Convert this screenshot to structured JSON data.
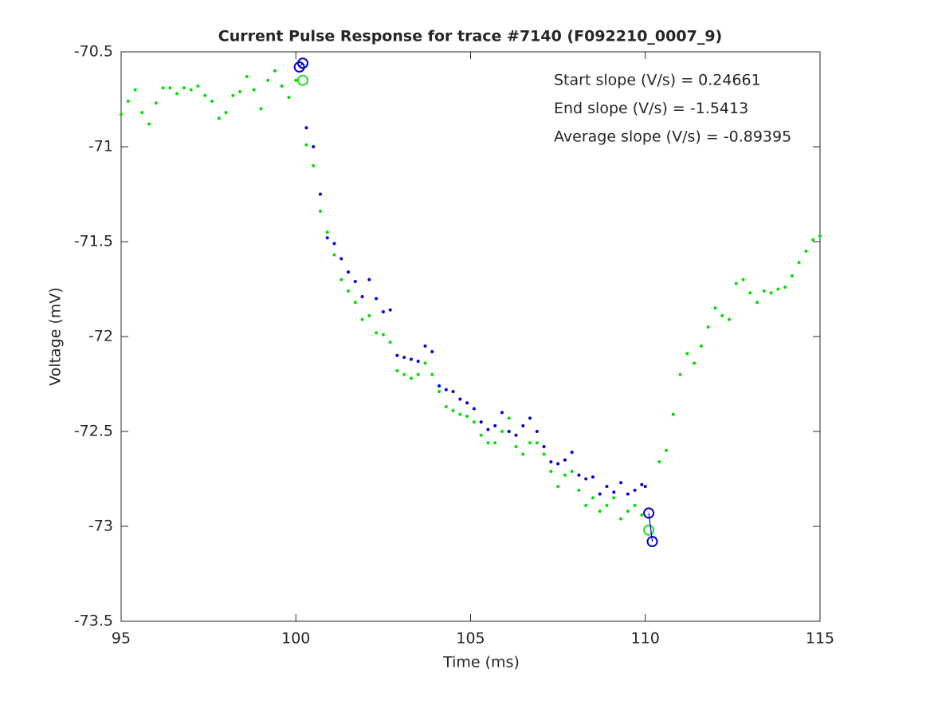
{
  "chart_data": {
    "type": "scatter",
    "title": "Current Pulse Response for trace #7140 (F092210_0007_9)",
    "title_color": "#ff0000",
    "xlabel": "Time (ms)",
    "ylabel": "Voltage (mV)",
    "xlim": [
      95,
      115
    ],
    "xticks": [
      95,
      100,
      105,
      110,
      115
    ],
    "ylim": [
      -73.5,
      -70.5
    ],
    "yticks": [
      -70.5,
      -71,
      -71.5,
      -72,
      -72.5,
      -73,
      -73.5
    ],
    "annotations": [
      {
        "text": "Start slope (V/s) = 0.24661",
        "color": "#000000"
      },
      {
        "text": "End slope (V/s) = -1.5413",
        "color": "#000000"
      },
      {
        "text": "Average slope (V/s) = -0.89395",
        "color": "#ff0000"
      }
    ],
    "series": [
      {
        "color": "#00e000",
        "marker": "dot",
        "x": [
          95.0,
          95.2,
          95.4,
          95.6,
          95.8,
          96.0,
          96.2,
          96.4,
          96.6,
          96.8,
          97.0,
          97.2,
          97.4,
          97.6,
          97.8,
          98.0,
          98.2,
          98.4,
          98.6,
          98.8,
          99.0,
          99.2,
          99.4,
          99.6,
          99.8,
          100.0,
          100.3,
          100.5,
          100.7,
          100.9,
          101.1,
          101.3,
          101.5,
          101.7,
          101.9,
          102.1,
          102.3,
          102.5,
          102.7,
          102.9,
          103.1,
          103.3,
          103.5,
          103.7,
          103.9,
          104.1,
          104.3,
          104.5,
          104.7,
          104.9,
          105.1,
          105.3,
          105.5,
          105.7,
          105.9,
          106.1,
          106.3,
          106.5,
          106.7,
          106.9,
          107.1,
          107.3,
          107.5,
          107.7,
          107.9,
          108.1,
          108.3,
          108.5,
          108.7,
          108.9,
          109.1,
          109.3,
          109.5,
          109.7,
          109.9,
          110.4,
          110.6,
          110.8,
          111.0,
          111.2,
          111.4,
          111.6,
          111.8,
          112.0,
          112.2,
          112.4,
          112.6,
          112.8,
          113.0,
          113.2,
          113.4,
          113.6,
          113.8,
          114.0,
          114.2,
          114.4,
          114.6,
          114.8,
          115.0
        ],
        "values": [
          -70.83,
          -70.76,
          -70.7,
          -70.82,
          -70.88,
          -70.77,
          -70.69,
          -70.69,
          -70.72,
          -70.69,
          -70.7,
          -70.68,
          -70.73,
          -70.76,
          -70.85,
          -70.82,
          -70.73,
          -70.71,
          -70.63,
          -70.7,
          -70.8,
          -70.65,
          -70.6,
          -70.68,
          -70.74,
          -70.65,
          -70.99,
          -71.1,
          -71.34,
          -71.45,
          -71.57,
          -71.7,
          -71.76,
          -71.82,
          -71.91,
          -71.89,
          -71.98,
          -71.99,
          -72.03,
          -72.18,
          -72.2,
          -72.22,
          -72.2,
          -72.14,
          -72.2,
          -72.29,
          -72.37,
          -72.39,
          -72.41,
          -72.42,
          -72.45,
          -72.52,
          -72.56,
          -72.56,
          -72.5,
          -72.43,
          -72.58,
          -72.62,
          -72.56,
          -72.56,
          -72.62,
          -72.71,
          -72.79,
          -72.73,
          -72.71,
          -72.81,
          -72.89,
          -72.85,
          -72.92,
          -72.89,
          -72.85,
          -72.96,
          -72.92,
          -72.89,
          -72.94,
          -72.66,
          -72.6,
          -72.41,
          -72.2,
          -72.09,
          -72.14,
          -72.05,
          -71.95,
          -71.85,
          -71.89,
          -71.91,
          -71.72,
          -71.7,
          -71.77,
          -71.82,
          -71.76,
          -71.77,
          -71.75,
          -71.74,
          -71.68,
          -71.61,
          -71.55,
          -71.49,
          -71.47
        ]
      },
      {
        "color": "#0000e0",
        "marker": "dot",
        "x": [
          100.3,
          100.5,
          100.7,
          100.9,
          101.1,
          101.3,
          101.5,
          101.7,
          101.9,
          102.1,
          102.3,
          102.5,
          102.7,
          102.9,
          103.1,
          103.3,
          103.5,
          103.7,
          103.9,
          104.1,
          104.3,
          104.5,
          104.7,
          104.9,
          105.1,
          105.3,
          105.5,
          105.7,
          105.9,
          106.1,
          106.3,
          106.5,
          106.7,
          106.9,
          107.1,
          107.3,
          107.5,
          107.7,
          107.9,
          108.1,
          108.3,
          108.5,
          108.7,
          108.9,
          109.1,
          109.3,
          109.5,
          109.7,
          109.9,
          110.0
        ],
        "values": [
          -70.9,
          -71.0,
          -71.25,
          -71.48,
          -71.51,
          -71.59,
          -71.66,
          -71.71,
          -71.79,
          -71.7,
          -71.8,
          -71.87,
          -71.86,
          -72.1,
          -72.11,
          -72.12,
          -72.13,
          -72.05,
          -72.08,
          -72.26,
          -72.28,
          -72.29,
          -72.33,
          -72.35,
          -72.38,
          -72.45,
          -72.49,
          -72.47,
          -72.4,
          -72.5,
          -72.52,
          -72.47,
          -72.43,
          -72.5,
          -72.58,
          -72.66,
          -72.67,
          -72.65,
          -72.61,
          -72.73,
          -72.75,
          -72.74,
          -72.83,
          -72.79,
          -72.82,
          -72.77,
          -72.83,
          -72.81,
          -72.78,
          -72.79
        ]
      },
      {
        "color": "#22dd22",
        "marker": "circle",
        "x": [
          100.2,
          110.1
        ],
        "values": [
          -70.65,
          -73.02
        ]
      },
      {
        "color": "#0000cc",
        "marker": "circle",
        "line": true,
        "x": [
          100.1,
          100.2
        ],
        "values": [
          -70.58,
          -70.56
        ]
      },
      {
        "color": "#0000cc",
        "marker": "circle",
        "line": true,
        "x": [
          110.1,
          110.2
        ],
        "values": [
          -72.93,
          -73.08
        ]
      }
    ]
  }
}
